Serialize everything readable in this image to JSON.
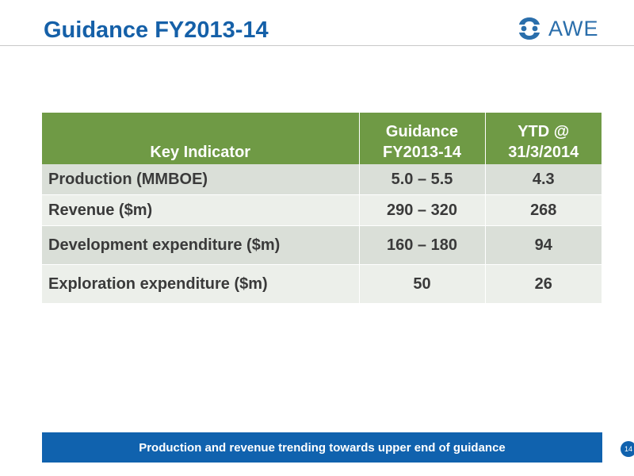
{
  "slide": {
    "title": "Guidance FY2013-14",
    "page_number": "14"
  },
  "logo": {
    "text": "AWE",
    "icon": "awe-logo-mark-icon",
    "color": "#2a6eab"
  },
  "colors": {
    "title": "#1560a8",
    "header_bg": "#6f9a45",
    "row_odd_bg": "#dadfd8",
    "row_even_bg": "#ecefea",
    "banner_bg": "#1062ae"
  },
  "table": {
    "headers": {
      "key_indicator": "Key Indicator",
      "guidance_line1": "Guidance",
      "guidance_line2": "FY2013-14",
      "ytd_line1": "YTD @",
      "ytd_line2": "31/3/2014"
    },
    "rows": [
      {
        "indicator": "Production (MMBOE)",
        "guidance": "5.0 – 5.5",
        "ytd": "4.3"
      },
      {
        "indicator": "Revenue ($m)",
        "guidance": "290 – 320",
        "ytd": "268"
      },
      {
        "indicator": "Development expenditure ($m)",
        "guidance": "160 – 180",
        "ytd": "94"
      },
      {
        "indicator": "Exploration expenditure ($m)",
        "guidance": "50",
        "ytd": "26"
      }
    ]
  },
  "footer": {
    "banner_text": "Production and revenue trending towards upper end of guidance"
  }
}
